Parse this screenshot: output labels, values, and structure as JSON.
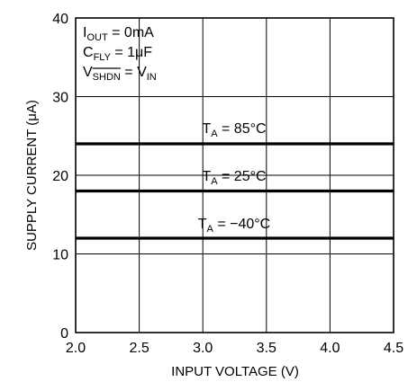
{
  "chart_data": {
    "type": "line",
    "title": "",
    "xlabel": "INPUT VOLTAGE (V)",
    "ylabel": "SUPPLY CURRENT (μA)",
    "xlim": [
      2.0,
      4.5
    ],
    "ylim": [
      0,
      40
    ],
    "x_ticks": [
      "2.0",
      "2.5",
      "3.0",
      "3.5",
      "4.0",
      "4.5"
    ],
    "y_ticks": [
      "0",
      "10",
      "20",
      "30",
      "40"
    ],
    "grid": true,
    "x": [
      2.0,
      4.5
    ],
    "series": [
      {
        "name": "TA = 85°C",
        "values": [
          24,
          24
        ]
      },
      {
        "name": "TA = 25°C",
        "values": [
          18,
          18
        ]
      },
      {
        "name": "TA = −40°C",
        "values": [
          12,
          12
        ]
      }
    ],
    "series_labels": [
      {
        "main": "T",
        "sub": "A",
        "rest": " = 85°C"
      },
      {
        "main": "T",
        "sub": "A",
        "rest": " = 25°C"
      },
      {
        "main": "T",
        "sub": "A",
        "rest": " = −40°C"
      }
    ],
    "conditions": [
      {
        "main": "I",
        "sub": "OUT",
        "rest": " = 0mA"
      },
      {
        "main": "C",
        "sub": "FLY",
        "rest": " = 1μF"
      },
      {
        "main": "V",
        "sub": "SHDN",
        "mid": " = V",
        "sub2": "IN"
      }
    ],
    "line_color": "#000000",
    "grid_color": "#000000"
  }
}
